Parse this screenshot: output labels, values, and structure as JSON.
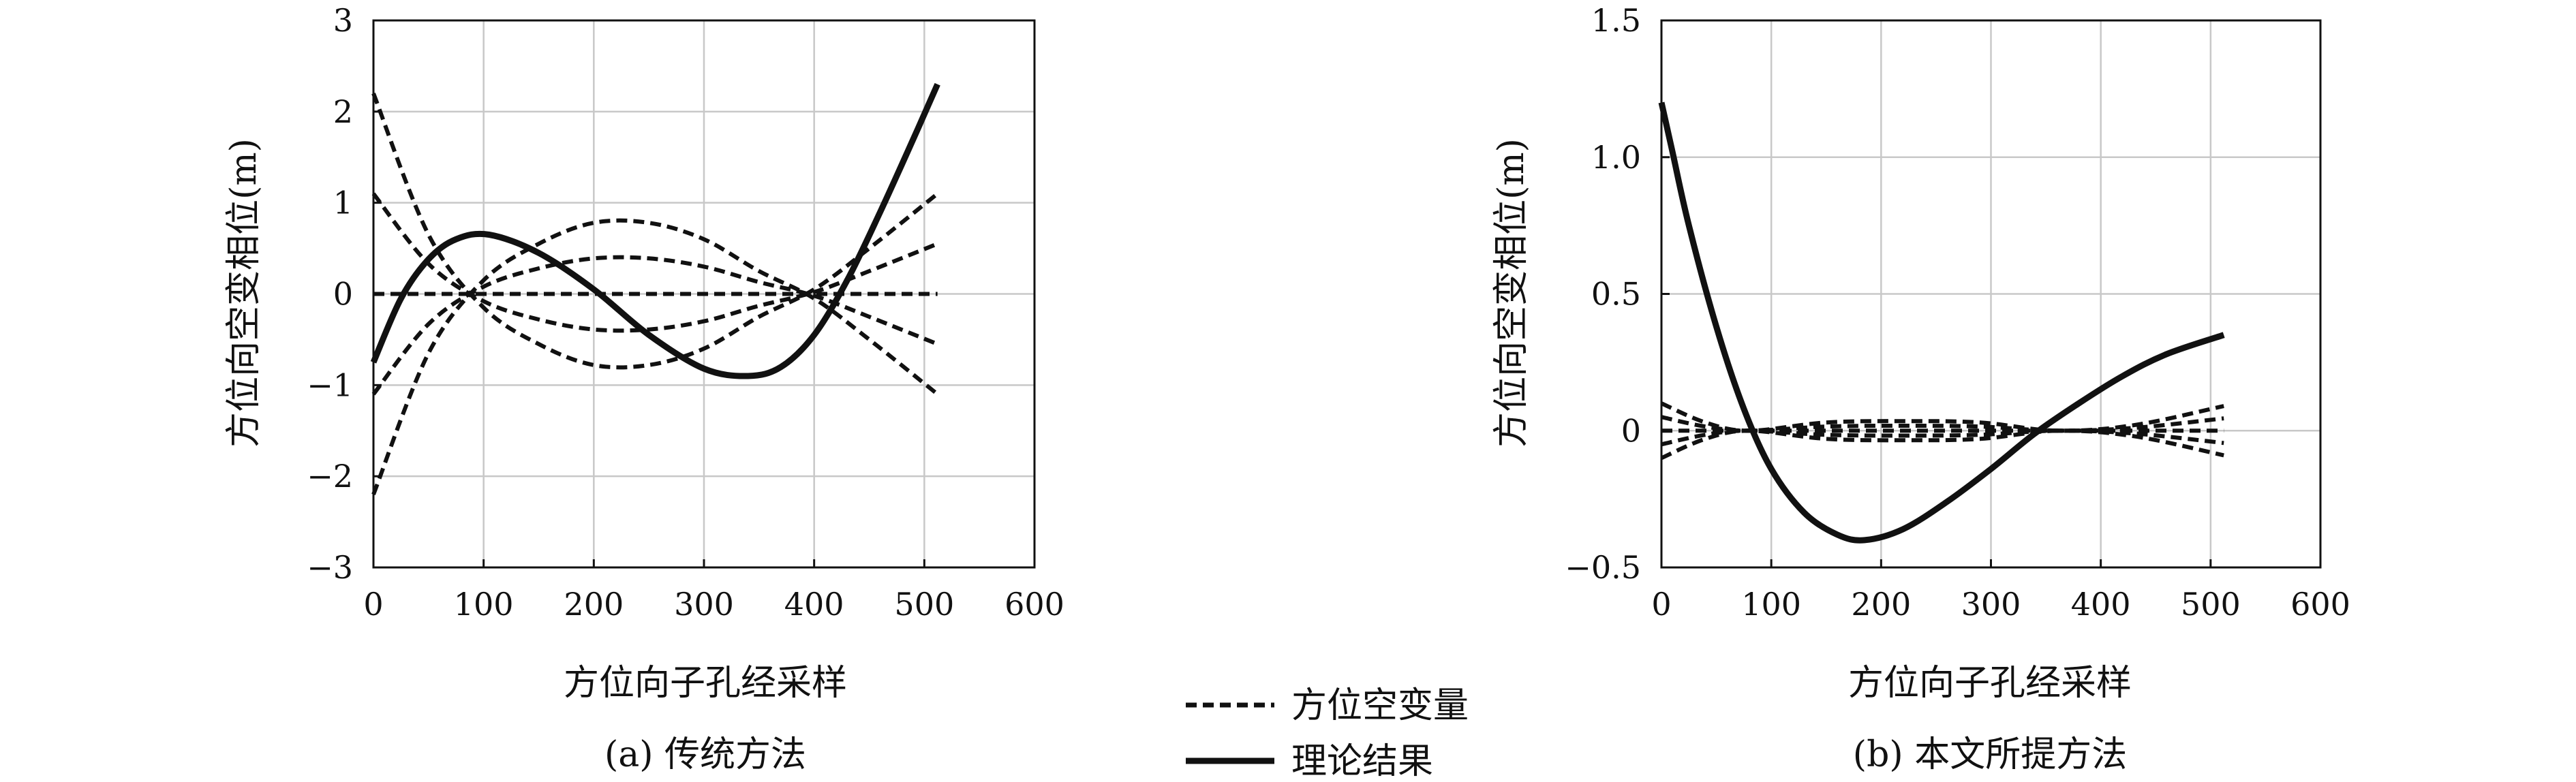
{
  "chart_data": [
    {
      "type": "line",
      "caption": "(a) 传统方法",
      "xlabel": "方位向子孔经采样",
      "ylabel": "方位向空变相位(m)",
      "xlim": [
        0,
        600
      ],
      "ylim": [
        -3,
        3
      ],
      "xticks": [
        0,
        100,
        200,
        300,
        400,
        500,
        600
      ],
      "yticks": [
        -3,
        -2,
        -1,
        0,
        1,
        2,
        3
      ],
      "ytick_labels": [
        "−3",
        "−2",
        "−1",
        "0",
        "1",
        "2",
        "3"
      ],
      "grid": true,
      "series": [
        {
          "name": "方位空变量",
          "style": "dashed",
          "x": [
            0,
            50,
            100,
            150,
            200,
            250,
            300,
            350,
            400,
            450,
            512
          ],
          "y": [
            2.2,
            0.65,
            -0.15,
            -0.55,
            -0.78,
            -0.78,
            -0.6,
            -0.25,
            0.05,
            0.5,
            1.1
          ]
        },
        {
          "name": "方位空变量",
          "style": "dashed",
          "x": [
            0,
            50,
            100,
            150,
            200,
            250,
            300,
            350,
            400,
            450,
            512
          ],
          "y": [
            1.1,
            0.33,
            -0.08,
            -0.28,
            -0.39,
            -0.39,
            -0.3,
            -0.13,
            0.02,
            0.25,
            0.55
          ]
        },
        {
          "name": "方位空变量",
          "style": "dashed",
          "x": [
            0,
            512
          ],
          "y": [
            0,
            0
          ]
        },
        {
          "name": "方位空变量",
          "style": "dashed",
          "x": [
            0,
            50,
            100,
            150,
            200,
            250,
            300,
            350,
            400,
            450,
            512
          ],
          "y": [
            -1.1,
            -0.33,
            0.08,
            0.28,
            0.39,
            0.39,
            0.3,
            0.13,
            -0.02,
            -0.25,
            -0.55
          ]
        },
        {
          "name": "方位空变量",
          "style": "dashed",
          "x": [
            0,
            50,
            100,
            150,
            200,
            250,
            300,
            350,
            400,
            450,
            512
          ],
          "y": [
            -2.2,
            -0.65,
            0.15,
            0.55,
            0.78,
            0.78,
            0.6,
            0.25,
            -0.05,
            -0.5,
            -1.1
          ]
        },
        {
          "name": "理论结果",
          "style": "solid",
          "x": [
            0,
            25,
            50,
            75,
            105,
            150,
            200,
            250,
            300,
            340,
            370,
            400,
            430,
            460,
            490,
            512
          ],
          "y": [
            -0.75,
            -0.05,
            0.38,
            0.6,
            0.65,
            0.45,
            0.05,
            -0.45,
            -0.82,
            -0.9,
            -0.8,
            -0.45,
            0.15,
            0.9,
            1.7,
            2.3
          ]
        }
      ]
    },
    {
      "type": "line",
      "caption": "(b) 本文所提方法",
      "xlabel": "方位向子孔经采样",
      "ylabel": "方位向空变相位(m)",
      "xlim": [
        0,
        600
      ],
      "ylim": [
        -0.5,
        1.5
      ],
      "xticks": [
        0,
        100,
        200,
        300,
        400,
        500,
        600
      ],
      "yticks": [
        -0.5,
        0,
        0.5,
        1.0,
        1.5
      ],
      "ytick_labels": [
        "−0.5",
        "0",
        "0.5",
        "1.0",
        "1.5"
      ],
      "grid": true,
      "series": [
        {
          "name": "方位空变量",
          "style": "dashed",
          "x": [
            0,
            40,
            80,
            150,
            220,
            290,
            360,
            430,
            512
          ],
          "y": [
            0.1,
            0.03,
            0.0,
            0.03,
            0.035,
            0.03,
            0.0,
            0.02,
            0.09
          ]
        },
        {
          "name": "方位空变量",
          "style": "dashed",
          "x": [
            0,
            40,
            80,
            150,
            220,
            290,
            360,
            430,
            512
          ],
          "y": [
            0.05,
            0.015,
            0.0,
            0.015,
            0.018,
            0.015,
            0.0,
            0.01,
            0.045
          ]
        },
        {
          "name": "方位空变量",
          "style": "dashed",
          "x": [
            0,
            512
          ],
          "y": [
            0,
            0
          ]
        },
        {
          "name": "方位空变量",
          "style": "dashed",
          "x": [
            0,
            40,
            80,
            150,
            220,
            290,
            360,
            430,
            512
          ],
          "y": [
            -0.05,
            -0.015,
            0.0,
            -0.015,
            -0.018,
            -0.015,
            0.0,
            -0.01,
            -0.045
          ]
        },
        {
          "name": "方位空变量",
          "style": "dashed",
          "x": [
            0,
            40,
            80,
            150,
            220,
            290,
            360,
            430,
            512
          ],
          "y": [
            -0.1,
            -0.03,
            0.0,
            -0.03,
            -0.035,
            -0.03,
            0.0,
            -0.02,
            -0.09
          ]
        },
        {
          "name": "理论结果",
          "style": "solid",
          "x": [
            0,
            10,
            25,
            50,
            75,
            100,
            130,
            160,
            185,
            220,
            260,
            300,
            340,
            380,
            420,
            460,
            512
          ],
          "y": [
            1.2,
            1.02,
            0.75,
            0.38,
            0.08,
            -0.14,
            -0.3,
            -0.38,
            -0.4,
            -0.36,
            -0.26,
            -0.14,
            -0.01,
            0.1,
            0.2,
            0.28,
            0.35
          ]
        }
      ]
    }
  ],
  "legend": [
    {
      "label": "方位空变量",
      "style": "dashed"
    },
    {
      "label": "理论结果",
      "style": "solid"
    }
  ]
}
